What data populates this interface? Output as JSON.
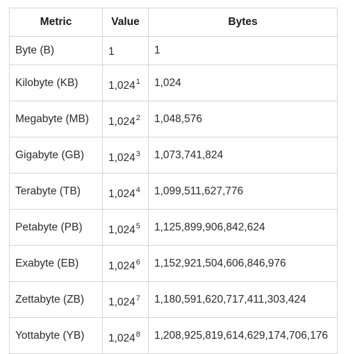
{
  "table": {
    "headers": [
      "Metric",
      "Value",
      "Bytes"
    ],
    "rows": [
      {
        "metric": "Byte (B)",
        "base": "1",
        "exp": "",
        "bytes": "1"
      },
      {
        "metric": "Kilobyte (KB)",
        "base": "1,024",
        "exp": "1",
        "bytes": "1,024"
      },
      {
        "metric": "Megabyte (MB)",
        "base": "1,024",
        "exp": "2",
        "bytes": "1,048,576"
      },
      {
        "metric": "Gigabyte (GB)",
        "base": "1,024",
        "exp": "3",
        "bytes": "1,073,741,824"
      },
      {
        "metric": "Terabyte (TB)",
        "base": "1,024",
        "exp": "4",
        "bytes": "1,099,511,627,776"
      },
      {
        "metric": "Petabyte (PB)",
        "base": "1,024",
        "exp": "5",
        "bytes": "1,125,899,906,842,624"
      },
      {
        "metric": "Exabyte (EB)",
        "base": "1,024",
        "exp": "6",
        "bytes": "1,152,921,504,606,846,976"
      },
      {
        "metric": "Zettabyte (ZB)",
        "base": "1,024",
        "exp": "7",
        "bytes": "1,180,591,620,717,411,303,424"
      },
      {
        "metric": "Yottabyte (YB)",
        "base": "1,024",
        "exp": "8",
        "bytes": "1,208,925,819,614,629,174,706,176"
      }
    ]
  }
}
